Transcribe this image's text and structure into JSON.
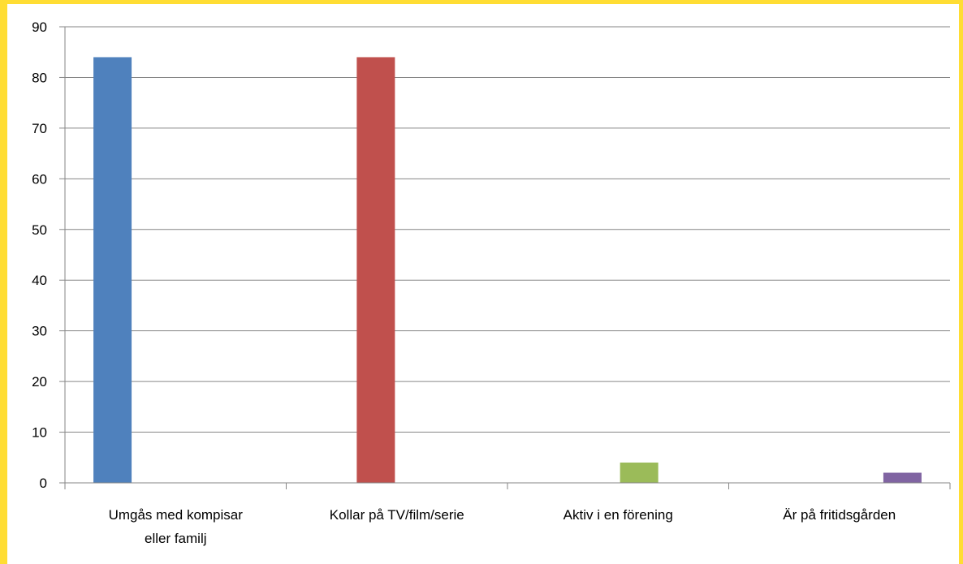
{
  "chart_data": {
    "type": "bar",
    "categories": [
      [
        "Umgås med kompisar",
        "eller familj"
      ],
      [
        "Kollar på TV/film/serie"
      ],
      [
        "Aktiv i en förening"
      ],
      [
        "Är på fritidsgården"
      ]
    ],
    "series": [
      {
        "values": [
          84,
          null,
          null,
          null
        ],
        "color": "#4F81BD"
      },
      {
        "values": [
          null,
          84,
          null,
          null
        ],
        "color": "#C0504D"
      },
      {
        "values": [
          null,
          null,
          4,
          null
        ],
        "color": "#9BBB59"
      },
      {
        "values": [
          null,
          null,
          null,
          2
        ],
        "color": "#8064A2"
      }
    ],
    "yticks": [
      0,
      10,
      20,
      30,
      40,
      50,
      60,
      70,
      80,
      90
    ],
    "ylim": [
      0,
      90
    ],
    "grid": true,
    "legend": "none",
    "title": "",
    "xlabel": "",
    "ylabel": ""
  }
}
